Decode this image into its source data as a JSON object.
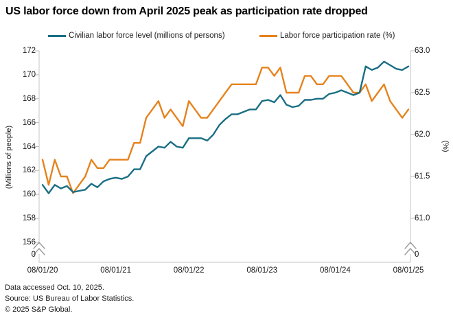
{
  "title": "US labor force down from April 2025 peak as participation rate dropped",
  "legend": [
    {
      "label": "Civilian labor force level (millions of persons)",
      "color": "#1A6E84"
    },
    {
      "label": "Labor force participation rate (%)",
      "color": "#E6821C"
    }
  ],
  "footer": {
    "line1": "Data accessed Oct. 10, 2025.",
    "line2": "Source: US Bureau of Labor Statistics.",
    "line3": "© 2025 S&P Global."
  },
  "chart_data": {
    "type": "line",
    "title": "US labor force down from April 2025 peak as participation rate dropped",
    "frequency": "monthly",
    "x_start": "2020-08-01",
    "x_end": "2025-08-01",
    "x_tick_labels": [
      "08/01/20",
      "08/01/21",
      "08/01/22",
      "08/01/23",
      "08/01/24",
      "08/01/25"
    ],
    "grid": false,
    "legend_position": "top",
    "left_axis": {
      "label": "(Millions of people)",
      "tick_labels": [
        "172",
        "170",
        "168",
        "166",
        "164",
        "162",
        "160",
        "158",
        "156"
      ],
      "ticks": [
        172,
        170,
        168,
        166,
        164,
        162,
        160,
        158,
        156
      ],
      "zero_label": "0",
      "axis_break": true,
      "range": [
        156,
        172
      ]
    },
    "right_axis": {
      "label": "(%)",
      "tick_labels": [
        "63.0",
        "62.5",
        "62.0",
        "61.5",
        "61.0"
      ],
      "ticks": [
        63.0,
        62.5,
        62.0,
        61.5,
        61.0
      ],
      "zero_label": "0",
      "axis_break": true,
      "range": [
        61.0,
        63.0
      ]
    },
    "series": [
      {
        "name": "Civilian labor force level (millions of persons)",
        "axis": "left",
        "color": "#1A6E84",
        "values": [
          160.8,
          160.1,
          160.8,
          160.5,
          160.7,
          160.2,
          160.3,
          160.4,
          160.9,
          160.6,
          161.1,
          161.3,
          161.4,
          161.3,
          161.5,
          162.1,
          162.1,
          163.2,
          163.6,
          164.0,
          163.9,
          164.4,
          164.0,
          163.9,
          164.7,
          164.7,
          164.7,
          164.5,
          165.0,
          165.8,
          166.3,
          166.7,
          166.7,
          166.9,
          167.1,
          167.1,
          167.8,
          167.9,
          167.7,
          168.3,
          167.5,
          167.3,
          167.4,
          167.9,
          167.9,
          168.0,
          168.0,
          168.4,
          168.5,
          168.7,
          168.5,
          168.3,
          168.5,
          170.7,
          170.4,
          170.6,
          171.1,
          170.8,
          170.5,
          170.4,
          170.7
        ]
      },
      {
        "name": "Labor force participation rate (%)",
        "axis": "right",
        "color": "#E6821C",
        "values": [
          61.7,
          61.4,
          61.7,
          61.5,
          61.5,
          61.3,
          61.4,
          61.5,
          61.7,
          61.6,
          61.6,
          61.7,
          61.7,
          61.7,
          61.7,
          61.9,
          61.9,
          62.2,
          62.3,
          62.4,
          62.2,
          62.3,
          62.2,
          62.1,
          62.4,
          62.3,
          62.2,
          62.2,
          62.3,
          62.4,
          62.5,
          62.6,
          62.6,
          62.6,
          62.6,
          62.6,
          62.8,
          62.8,
          62.7,
          62.8,
          62.5,
          62.5,
          62.5,
          62.7,
          62.7,
          62.6,
          62.6,
          62.7,
          62.7,
          62.7,
          62.6,
          62.5,
          62.5,
          62.6,
          62.4,
          62.5,
          62.6,
          62.4,
          62.3,
          62.2,
          62.3
        ]
      }
    ]
  }
}
